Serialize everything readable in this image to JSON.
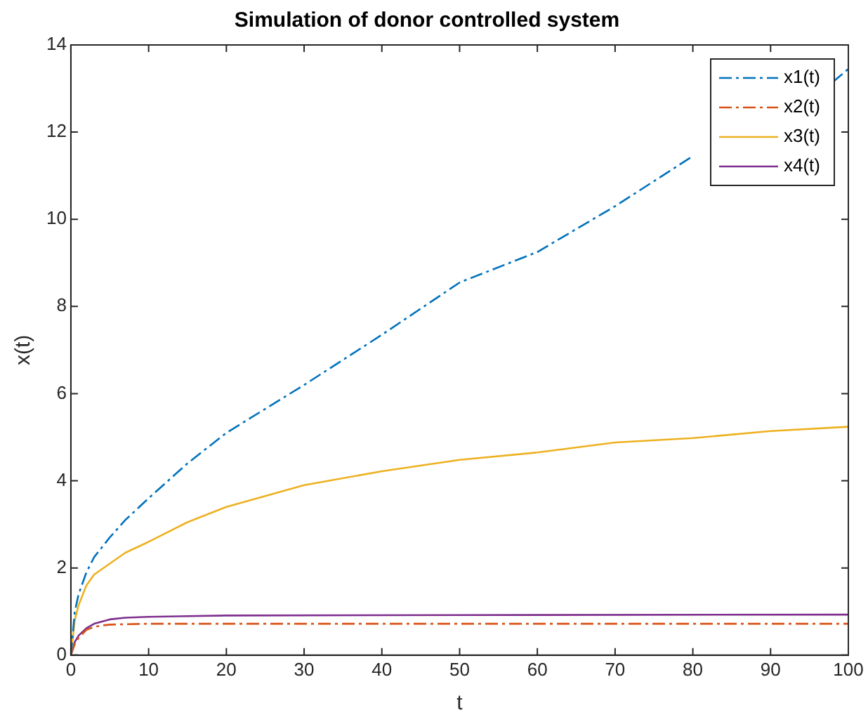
{
  "chart_data": {
    "type": "line",
    "title": "Simulation of donor controlled system",
    "xlabel": "t",
    "ylabel": "x(t)",
    "xlim": [
      0,
      100
    ],
    "xticks": [
      0,
      10,
      20,
      30,
      40,
      50,
      60,
      70,
      80,
      90,
      100
    ],
    "ylim": [
      0,
      14
    ],
    "yticks": [
      0,
      2,
      4,
      6,
      8,
      10,
      12,
      14
    ],
    "grid": false,
    "legend": "top right",
    "marker": "none",
    "series": [
      {
        "name": "x1(t)",
        "color": "#0072bd",
        "line_style": "dashdot",
        "x": [
          0,
          0.5,
          1,
          2,
          3,
          5,
          7,
          10,
          15,
          20,
          30,
          40,
          50,
          60,
          70,
          80,
          82,
          85,
          90,
          95,
          97,
          98,
          100
        ],
        "values": [
          0,
          1.0,
          1.4,
          1.9,
          2.25,
          2.7,
          3.1,
          3.6,
          4.4,
          5.1,
          6.2,
          7.35,
          8.55,
          9.25,
          10.3,
          11.45,
          null,
          null,
          null,
          null,
          null,
          13.15,
          13.45
        ]
      },
      {
        "name": "x2(t)",
        "color": "#d95319",
        "line_style": "dashdot",
        "x": [
          0,
          0.5,
          1,
          2,
          3,
          4,
          5,
          7,
          10,
          20,
          50,
          100
        ],
        "values": [
          0,
          0.25,
          0.4,
          0.58,
          0.65,
          0.68,
          0.7,
          0.71,
          0.72,
          0.72,
          0.72,
          0.72
        ]
      },
      {
        "name": "x3(t)",
        "color": "#edb120",
        "line_style": "solid",
        "x": [
          0,
          0.5,
          1,
          2,
          3,
          5,
          7,
          10,
          15,
          20,
          30,
          40,
          50,
          60,
          70,
          80,
          90,
          100
        ],
        "values": [
          0,
          0.8,
          1.15,
          1.6,
          1.85,
          2.1,
          2.35,
          2.6,
          3.05,
          3.4,
          3.9,
          4.22,
          4.48,
          4.65,
          4.88,
          4.98,
          5.14,
          5.24
        ]
      },
      {
        "name": "x4(t)",
        "color": "#7e2f8e",
        "line_style": "solid",
        "x": [
          0,
          0.5,
          1,
          2,
          3,
          5,
          7,
          10,
          20,
          50,
          100
        ],
        "values": [
          0,
          0.3,
          0.45,
          0.62,
          0.72,
          0.82,
          0.86,
          0.88,
          0.91,
          0.92,
          0.93
        ]
      }
    ]
  }
}
